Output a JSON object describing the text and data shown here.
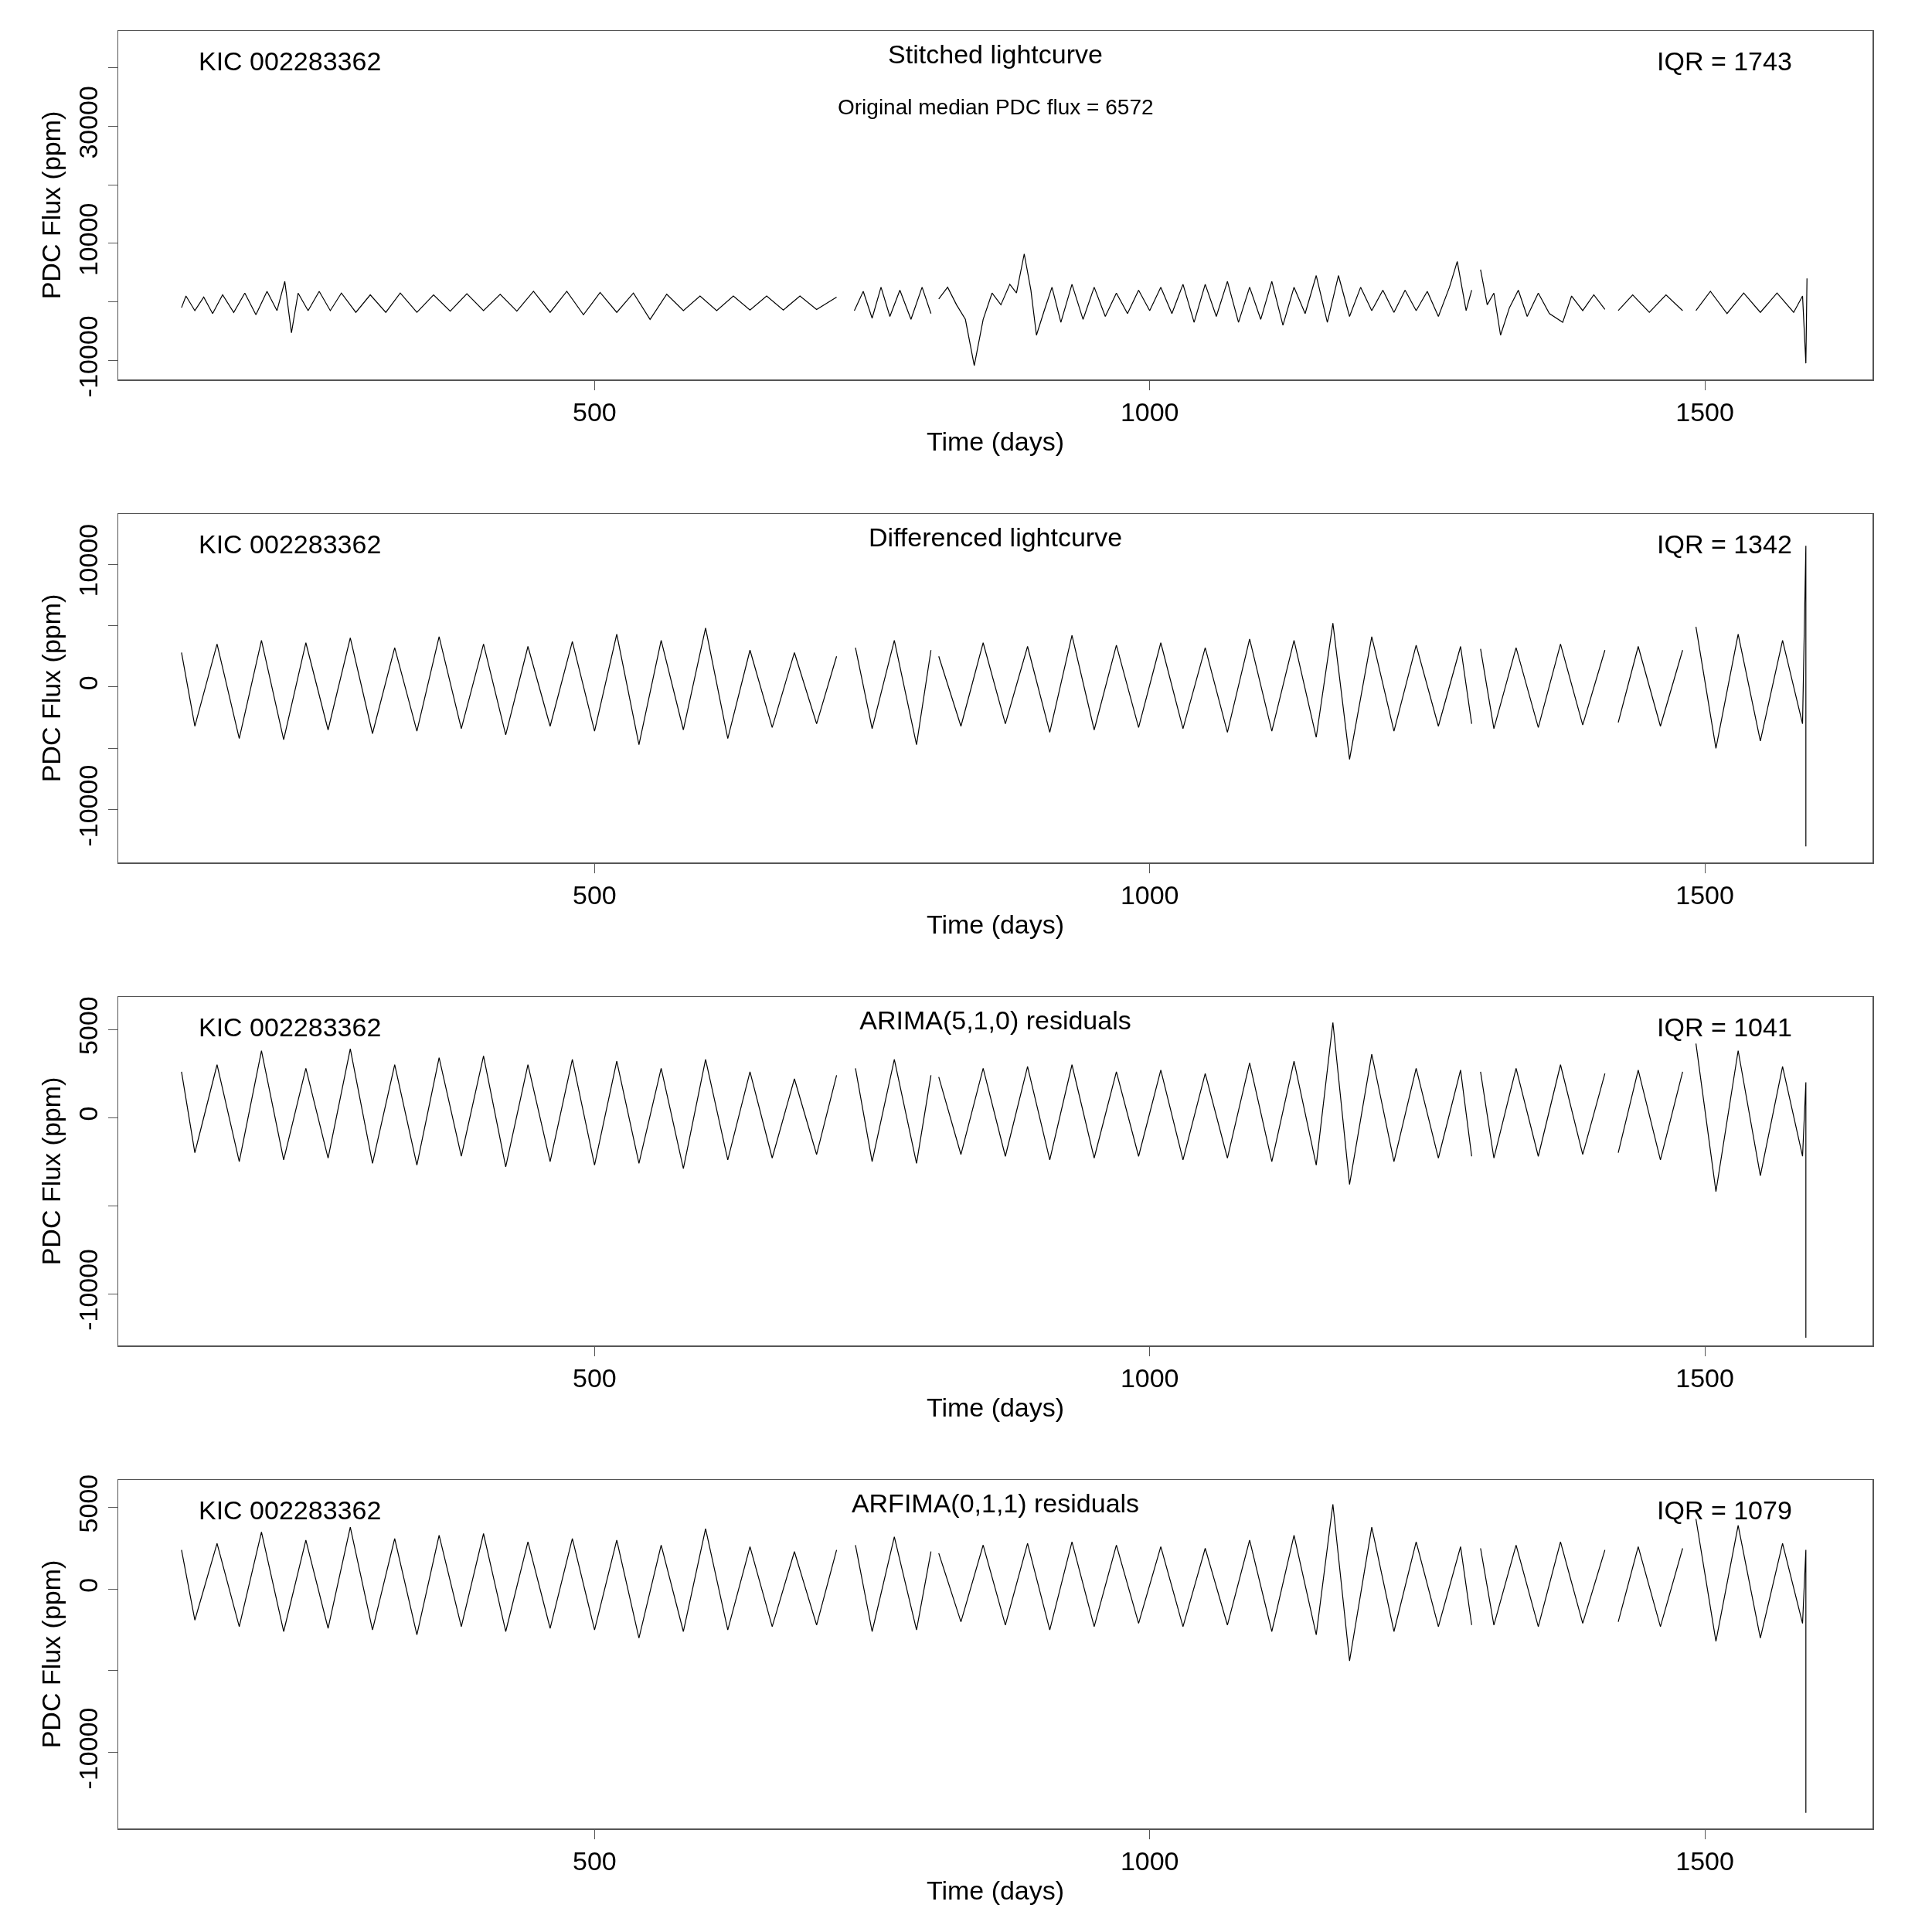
{
  "chart_data": [
    {
      "type": "line",
      "title": "Stitched lightcurve",
      "xlabel": "Time (days)",
      "ylabel": "PDC Flux (ppm)",
      "color": "#000000",
      "grid": false,
      "annotations": [
        "KIC 002283362",
        "IQR = 1743",
        "Original median PDC flux = 6572"
      ],
      "xlim": [
        71,
        1651
      ],
      "xticks": [
        500,
        1000,
        1500
      ],
      "ylim": [
        -13260,
        46300
      ],
      "yticks": [
        {
          "value": -10000,
          "label": "-10000"
        },
        {
          "value": 0,
          "label": null
        },
        {
          "value": 10000,
          "label": "10000"
        },
        {
          "value": 20000,
          "label": null
        },
        {
          "value": 30000,
          "label": "30000"
        },
        {
          "value": 40000,
          "label": null
        }
      ],
      "x": [
        128,
        132,
        140,
        148,
        156,
        165,
        175,
        185,
        195,
        205,
        214,
        221,
        227,
        233,
        242,
        252,
        262,
        272,
        285,
        298,
        312,
        325,
        340,
        355,
        370,
        385,
        400,
        415,
        430,
        445,
        460,
        475,
        490,
        505,
        520,
        535,
        550,
        565,
        580,
        595,
        610,
        625,
        640,
        655,
        670,
        685,
        700,
        718,
        727,
        734,
        742,
        750,
        758,
        766,
        775,
        785,
        795,
        803,
        806,
        810,
        818,
        826,
        834,
        842,
        850,
        858,
        866,
        874,
        880,
        887,
        893,
        898,
        905,
        912,
        920,
        930,
        940,
        950,
        960,
        970,
        980,
        990,
        1000,
        1010,
        1020,
        1030,
        1040,
        1050,
        1060,
        1070,
        1080,
        1090,
        1100,
        1110,
        1120,
        1130,
        1140,
        1150,
        1160,
        1170,
        1180,
        1190,
        1200,
        1210,
        1220,
        1230,
        1240,
        1250,
        1260,
        1270,
        1277,
        1285,
        1290,
        1294,
        1298,
        1304,
        1310,
        1316,
        1324,
        1332,
        1340,
        1350,
        1360,
        1372,
        1380,
        1390,
        1400,
        1410,
        1417,
        1422,
        1435,
        1450,
        1465,
        1480,
        1486,
        1492,
        1505,
        1520,
        1535,
        1550,
        1565,
        1580,
        1588,
        1591,
        1592
      ],
      "values": [
        -1000,
        1000,
        -1500,
        800,
        -2000,
        1200,
        -1800,
        1500,
        -2200,
        1800,
        -1500,
        3500,
        -5300,
        1500,
        -1500,
        1800,
        -1500,
        1500,
        -1800,
        1200,
        -1800,
        1500,
        -1800,
        1200,
        -1600,
        1400,
        -1500,
        1300,
        -1600,
        1800,
        -1800,
        1800,
        -2200,
        1600,
        -1800,
        1500,
        -3000,
        1300,
        -1500,
        1000,
        -1500,
        1000,
        -1400,
        1000,
        -1400,
        1000,
        -1300,
        800,
        null,
        -1500,
        1800,
        -2800,
        2500,
        -2500,
        2000,
        -3000,
        2500,
        -2000,
        null,
        500,
        2500,
        -500,
        -3000,
        -10900,
        -3000,
        1500,
        -500,
        3000,
        1500,
        8200,
        2000,
        -5700,
        -1500,
        2500,
        -3500,
        3000,
        -3000,
        2500,
        -2500,
        1500,
        -2000,
        2000,
        -1500,
        2500,
        -2000,
        3000,
        -3500,
        3000,
        -2500,
        3500,
        -3500,
        2500,
        -3000,
        3500,
        -4000,
        2500,
        -2000,
        4500,
        -3500,
        4500,
        -2500,
        2500,
        -1500,
        2000,
        -1800,
        2000,
        -1500,
        1800,
        -2500,
        2500,
        6900,
        -1500,
        2000,
        null,
        5500,
        -500,
        1500,
        -5700,
        -1000,
        2000,
        -2500,
        1500,
        -2000,
        -3500,
        1000,
        -1500,
        1200,
        -1300,
        null,
        -1500,
        1200,
        -1800,
        1200,
        -1500,
        null,
        -1500,
        1800,
        -2000,
        1500,
        -1800,
        1500,
        -1800,
        1000,
        -10500,
        4000
      ]
    },
    {
      "type": "line",
      "title": "Differenced lightcurve",
      "xlabel": "Time (days)",
      "ylabel": "PDC Flux (ppm)",
      "color": "#000000",
      "grid": false,
      "annotations": [
        "KIC 002283362",
        "IQR = 1342"
      ],
      "xlim": [
        71,
        1651
      ],
      "xticks": [
        500,
        1000,
        1500
      ],
      "ylim": [
        -14300,
        14100
      ],
      "yticks": [
        {
          "value": -10000,
          "label": "-10000"
        },
        {
          "value": -5000,
          "label": null
        },
        {
          "value": 0,
          "label": "0"
        },
        {
          "value": 5000,
          "label": null
        },
        {
          "value": 10000,
          "label": "10000"
        }
      ],
      "x": [
        128,
        140,
        160,
        180,
        200,
        220,
        240,
        260,
        280,
        300,
        320,
        340,
        360,
        380,
        400,
        420,
        440,
        460,
        480,
        500,
        520,
        540,
        560,
        580,
        600,
        620,
        640,
        660,
        680,
        700,
        718,
        727,
        735,
        750,
        770,
        790,
        803,
        806,
        810,
        830,
        850,
        870,
        890,
        910,
        930,
        950,
        970,
        990,
        1010,
        1030,
        1050,
        1070,
        1090,
        1110,
        1130,
        1150,
        1165,
        1180,
        1200,
        1220,
        1240,
        1260,
        1280,
        1290,
        1294,
        1298,
        1310,
        1330,
        1350,
        1370,
        1390,
        1410,
        1417,
        1422,
        1440,
        1460,
        1480,
        1486,
        1492,
        1510,
        1530,
        1550,
        1570,
        1588,
        1591,
        1591
      ],
      "values": [
        2800,
        -3200,
        3500,
        -4200,
        3800,
        -4300,
        3600,
        -3500,
        4000,
        -3800,
        3200,
        -3600,
        4100,
        -3400,
        3500,
        -3900,
        3300,
        -3200,
        3700,
        -3600,
        4300,
        -4700,
        3800,
        -3500,
        4800,
        -4200,
        3000,
        -3300,
        2800,
        -3000,
        2500,
        null,
        3200,
        -3400,
        3800,
        -4700,
        3000,
        null,
        2500,
        -3200,
        3600,
        -3000,
        3300,
        -3700,
        4200,
        -3500,
        3400,
        -3300,
        3600,
        -3400,
        3200,
        -3700,
        3900,
        -3600,
        3800,
        -4100,
        5200,
        -5900,
        4100,
        -3600,
        3400,
        -3200,
        3300,
        -3000,
        null,
        3100,
        -3400,
        3200,
        -3300,
        3500,
        -3100,
        3000,
        null,
        -2900,
        3300,
        -3200,
        3000,
        null,
        4900,
        -5000,
        4300,
        -4400,
        3800,
        -3000,
        11500,
        -13000
      ]
    },
    {
      "type": "line",
      "title": "ARIMA(5,1,0) residuals",
      "xlabel": "Time (days)",
      "ylabel": "PDC Flux (ppm)",
      "color": "#000000",
      "grid": false,
      "annotations": [
        "KIC 002283362",
        "IQR = 1041"
      ],
      "xlim": [
        71,
        1651
      ],
      "xticks": [
        500,
        1000,
        1500
      ],
      "ylim": [
        -12940,
        6850
      ],
      "yticks": [
        {
          "value": -10000,
          "label": "-10000"
        },
        {
          "value": -5000,
          "label": null
        },
        {
          "value": 0,
          "label": "0"
        },
        {
          "value": 5000,
          "label": "5000"
        }
      ],
      "x": [
        128,
        140,
        160,
        180,
        200,
        220,
        240,
        260,
        280,
        300,
        320,
        340,
        360,
        380,
        400,
        420,
        440,
        460,
        480,
        500,
        520,
        540,
        560,
        580,
        600,
        620,
        640,
        660,
        680,
        700,
        718,
        727,
        735,
        750,
        770,
        790,
        803,
        806,
        810,
        830,
        850,
        870,
        890,
        910,
        930,
        950,
        970,
        990,
        1010,
        1030,
        1050,
        1070,
        1090,
        1110,
        1130,
        1150,
        1165,
        1180,
        1200,
        1220,
        1240,
        1260,
        1280,
        1290,
        1294,
        1298,
        1310,
        1330,
        1350,
        1370,
        1390,
        1410,
        1417,
        1422,
        1440,
        1460,
        1480,
        1486,
        1492,
        1510,
        1530,
        1550,
        1570,
        1588,
        1591,
        1591
      ],
      "values": [
        2600,
        -2000,
        3000,
        -2500,
        3800,
        -2400,
        2800,
        -2300,
        3900,
        -2600,
        3000,
        -2700,
        3400,
        -2200,
        3500,
        -2800,
        3000,
        -2500,
        3300,
        -2700,
        3200,
        -2600,
        2800,
        -2900,
        3300,
        -2400,
        2600,
        -2300,
        2200,
        -2100,
        2400,
        null,
        2800,
        -2500,
        3300,
        -2600,
        2400,
        null,
        2300,
        -2100,
        2800,
        -2200,
        2900,
        -2400,
        3000,
        -2300,
        2600,
        -2200,
        2700,
        -2400,
        2500,
        -2300,
        3100,
        -2500,
        3200,
        -2700,
        5400,
        -3800,
        3600,
        -2500,
        2800,
        -2300,
        2700,
        -2200,
        null,
        2600,
        -2300,
        2800,
        -2200,
        3000,
        -2100,
        2500,
        null,
        -2000,
        2700,
        -2400,
        2600,
        null,
        4200,
        -4200,
        3800,
        -3300,
        2900,
        -2200,
        2000,
        -12500
      ]
    },
    {
      "type": "line",
      "title": "ARFIMA(0,1,1) residuals",
      "xlabel": "Time (days)",
      "ylabel": "PDC Flux (ppm)",
      "color": "#000000",
      "grid": false,
      "annotations": [
        "KIC 002283362",
        "IQR = 1079"
      ],
      "xlim": [
        71,
        1651
      ],
      "xticks": [
        500,
        1000,
        1500
      ],
      "ylim": [
        -14660,
        6690
      ],
      "yticks": [
        {
          "value": -10000,
          "label": "-10000"
        },
        {
          "value": -5000,
          "label": null
        },
        {
          "value": 0,
          "label": "0"
        },
        {
          "value": 5000,
          "label": "5000"
        }
      ],
      "x": [
        128,
        140,
        160,
        180,
        200,
        220,
        240,
        260,
        280,
        300,
        320,
        340,
        360,
        380,
        400,
        420,
        440,
        460,
        480,
        500,
        520,
        540,
        560,
        580,
        600,
        620,
        640,
        660,
        680,
        700,
        718,
        727,
        735,
        750,
        770,
        790,
        803,
        806,
        810,
        830,
        850,
        870,
        890,
        910,
        930,
        950,
        970,
        990,
        1010,
        1030,
        1050,
        1070,
        1090,
        1110,
        1130,
        1150,
        1165,
        1180,
        1200,
        1220,
        1240,
        1260,
        1280,
        1290,
        1294,
        1298,
        1310,
        1330,
        1350,
        1370,
        1390,
        1410,
        1417,
        1422,
        1440,
        1460,
        1480,
        1486,
        1492,
        1510,
        1530,
        1550,
        1570,
        1588,
        1591,
        1591
      ],
      "values": [
        2400,
        -1900,
        2800,
        -2300,
        3500,
        -2600,
        3000,
        -2400,
        3800,
        -2500,
        3100,
        -2800,
        3300,
        -2300,
        3400,
        -2600,
        2900,
        -2400,
        3100,
        -2500,
        3000,
        -3000,
        2700,
        -2600,
        3700,
        -2500,
        2600,
        -2300,
        2300,
        -2200,
        2400,
        null,
        2700,
        -2600,
        3200,
        -2500,
        2300,
        null,
        2200,
        -2000,
        2700,
        -2200,
        2800,
        -2500,
        2900,
        -2300,
        2700,
        -2100,
        2600,
        -2300,
        2500,
        -2200,
        3000,
        -2600,
        3300,
        -2800,
        5200,
        -4400,
        3800,
        -2600,
        2900,
        -2300,
        2600,
        -2200,
        null,
        2500,
        -2200,
        2700,
        -2300,
        2900,
        -2100,
        2400,
        null,
        -2000,
        2600,
        -2300,
        2500,
        null,
        4300,
        -3200,
        3900,
        -3000,
        2800,
        -2100,
        2400,
        -13700
      ]
    }
  ]
}
